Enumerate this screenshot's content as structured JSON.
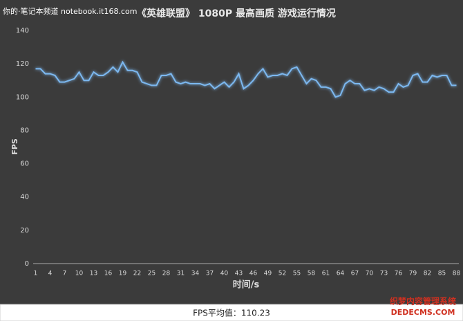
{
  "chart_data": {
    "type": "line",
    "title": "《英雄联盟》 1080P 最高画质 游戏运行情况",
    "xlabel": "时间/s",
    "ylabel": "FPS",
    "categories": [
      "1",
      null,
      null,
      "4",
      null,
      null,
      "7",
      null,
      null,
      "10",
      null,
      null,
      "13",
      null,
      null,
      "16",
      null,
      null,
      "19",
      null,
      null,
      "22",
      null,
      null,
      "25",
      null,
      null,
      "28",
      null,
      null,
      "31",
      null,
      null,
      "34",
      null,
      null,
      "37",
      null,
      null,
      "40",
      null,
      null,
      "43",
      null,
      null,
      "46",
      null,
      null,
      "49",
      null,
      null,
      "52",
      null,
      null,
      "55",
      null,
      null,
      "58",
      null,
      null,
      "61",
      null,
      null,
      "64",
      null,
      null,
      "67",
      null,
      null,
      "70",
      null,
      null,
      "73",
      null,
      null,
      "76",
      null,
      null,
      "79",
      null,
      null,
      "82",
      null,
      null,
      "85",
      null,
      null,
      "88"
    ],
    "series": [
      {
        "name": "FPS",
        "color": "#7cb8f0",
        "values": [
          117,
          117,
          114,
          114,
          113,
          109,
          109,
          110,
          111,
          115,
          110,
          110,
          115,
          113,
          113,
          115,
          118,
          115,
          121,
          116,
          116,
          115,
          109,
          108,
          107,
          107,
          113,
          113,
          114,
          109,
          108,
          109,
          108,
          108,
          108,
          107,
          108,
          105,
          107,
          109,
          106,
          109,
          114,
          105,
          107,
          110,
          114,
          117,
          112,
          113,
          113,
          114,
          113,
          117,
          118,
          113,
          108,
          111,
          110,
          106,
          106,
          105,
          100,
          101,
          108,
          110,
          108,
          108,
          104,
          105,
          104,
          106,
          105,
          103,
          103,
          108,
          106,
          107,
          113,
          114,
          109,
          109,
          113,
          112,
          113,
          113,
          107,
          107
        ]
      }
    ],
    "ylim": [
      0,
      140
    ],
    "yticks": [
      0,
      20,
      40,
      60,
      80,
      100,
      120,
      140
    ],
    "grid": false
  },
  "watermark_top": "你的·笔记本频道 notebook.it168.com",
  "watermark_bottom": [
    "织梦内容管理系统",
    "DEDECMS.COM"
  ],
  "footer_text": "FPS平均值：110.23"
}
